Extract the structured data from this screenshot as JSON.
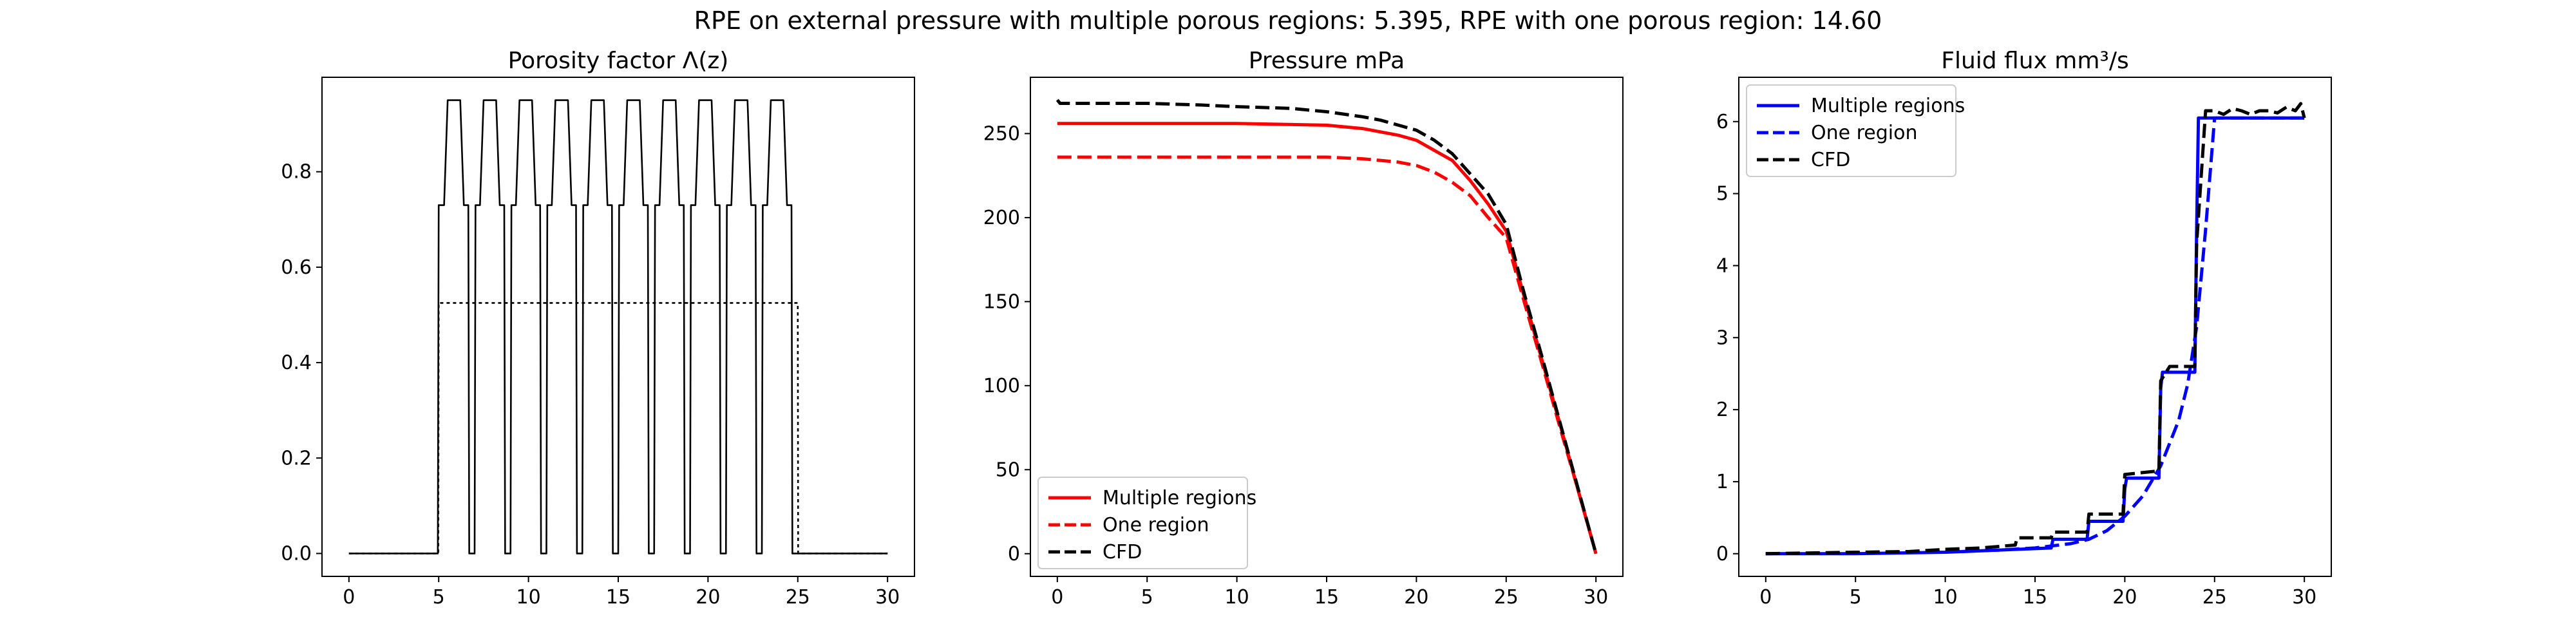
{
  "suptitle": "RPE on external pressure with multiple porous regions: 5.395, RPE with one porous region: 14.60",
  "chart_data": [
    {
      "type": "line",
      "title": "Porosity factor Λ(z)",
      "xlim": [
        -1.5,
        31.5
      ],
      "ylim": [
        -0.048,
        0.998
      ],
      "xticks": [
        0,
        5,
        10,
        15,
        20,
        25,
        30
      ],
      "yticks": [
        0.0,
        0.2,
        0.4,
        0.6,
        0.8
      ],
      "ytick_labels": [
        "0.0",
        "0.2",
        "0.4",
        "0.6",
        "0.8"
      ],
      "grid": false,
      "legend": null,
      "series": [
        {
          "style": "solid",
          "color": "#000000",
          "x": [
            0,
            4.95,
            5.0,
            5.05,
            5.3,
            5.5,
            6.2,
            6.4,
            6.65,
            6.7,
            7.0,
            7.05,
            7.3,
            7.5,
            8.2,
            8.4,
            8.65,
            8.7,
            9.0,
            9.05,
            9.3,
            9.5,
            10.2,
            10.4,
            10.65,
            10.7,
            11.0,
            11.05,
            11.3,
            11.5,
            12.2,
            12.4,
            12.65,
            12.7,
            13.0,
            13.05,
            13.3,
            13.5,
            14.2,
            14.4,
            14.65,
            14.7,
            15.0,
            15.05,
            15.3,
            15.5,
            16.2,
            16.4,
            16.65,
            16.7,
            17.0,
            17.05,
            17.3,
            17.5,
            18.2,
            18.4,
            18.65,
            18.7,
            19.0,
            19.05,
            19.3,
            19.5,
            20.2,
            20.4,
            20.65,
            20.7,
            21.0,
            21.05,
            21.3,
            21.5,
            22.2,
            22.4,
            22.65,
            22.7,
            23.0,
            23.05,
            23.3,
            23.5,
            24.2,
            24.4,
            24.65,
            24.7,
            25.0,
            25.05,
            30
          ],
          "y": [
            0,
            0,
            0.73,
            0.73,
            0.73,
            0.95,
            0.95,
            0.73,
            0.73,
            0,
            0,
            0.73,
            0.73,
            0.95,
            0.95,
            0.73,
            0.73,
            0,
            0,
            0.73,
            0.73,
            0.95,
            0.95,
            0.73,
            0.73,
            0,
            0,
            0.73,
            0.73,
            0.95,
            0.95,
            0.73,
            0.73,
            0,
            0,
            0.73,
            0.73,
            0.95,
            0.95,
            0.73,
            0.73,
            0,
            0,
            0.73,
            0.73,
            0.95,
            0.95,
            0.73,
            0.73,
            0,
            0,
            0.73,
            0.73,
            0.95,
            0.95,
            0.73,
            0.73,
            0,
            0,
            0.73,
            0.73,
            0.95,
            0.95,
            0.73,
            0.73,
            0,
            0,
            0.73,
            0.73,
            0.95,
            0.95,
            0.73,
            0.73,
            0,
            0,
            0.73,
            0.73,
            0.95,
            0.95,
            0.73,
            0.73,
            0,
            0,
            0,
            0
          ]
        },
        {
          "style": "dotted",
          "color": "#000000",
          "x": [
            0,
            4.98,
            5.0,
            25.0,
            25.02,
            30
          ],
          "y": [
            0,
            0,
            0.525,
            0.525,
            0,
            0
          ]
        }
      ]
    },
    {
      "type": "line",
      "title": "Pressure mPa",
      "xlim": [
        -1.5,
        31.5
      ],
      "ylim": [
        -13.5,
        283.5
      ],
      "xticks": [
        0,
        5,
        10,
        15,
        20,
        25,
        30
      ],
      "yticks": [
        0,
        50,
        100,
        150,
        200,
        250
      ],
      "ytick_labels": [
        "0",
        "50",
        "100",
        "150",
        "200",
        "250"
      ],
      "grid": false,
      "legend": "lower-left",
      "series": [
        {
          "name": "Multiple regions",
          "style": "solid",
          "color": "#ff0000",
          "x": [
            0,
            5,
            10,
            15,
            17,
            18,
            19,
            20,
            21,
            22,
            23,
            24,
            25,
            26,
            27,
            28,
            29,
            30
          ],
          "y": [
            256,
            256,
            256,
            255,
            253,
            251,
            249,
            246,
            240,
            234,
            222,
            208,
            192,
            153,
            115,
            77,
            38,
            0
          ]
        },
        {
          "name": "One region",
          "style": "dashed",
          "color": "#ff0000",
          "x": [
            0,
            5,
            10,
            15,
            17,
            18,
            19,
            20,
            21,
            22,
            23,
            24,
            25,
            26,
            27,
            28,
            29,
            30
          ],
          "y": [
            236,
            236,
            236,
            236,
            235,
            234,
            233,
            231,
            227,
            221,
            213,
            200,
            188,
            150,
            113,
            75,
            38,
            0
          ]
        },
        {
          "name": "CFD",
          "style": "dashed",
          "color": "#000000",
          "x": [
            0,
            0.15,
            2,
            5,
            8,
            10,
            13,
            15,
            17,
            18,
            19,
            20,
            21,
            22,
            23,
            24,
            25,
            26,
            27,
            28,
            29,
            30
          ],
          "y": [
            270,
            268,
            268,
            268,
            267,
            266,
            265,
            263,
            260,
            258,
            255,
            252,
            246,
            238,
            226,
            214,
            196,
            155,
            117,
            78,
            39,
            0
          ]
        }
      ]
    },
    {
      "type": "line",
      "title": "Fluid flux mm³/s",
      "xlim": [
        -1.5,
        31.5
      ],
      "ylim": [
        -0.315,
        6.615
      ],
      "xticks": [
        0,
        5,
        10,
        15,
        20,
        25,
        30
      ],
      "yticks": [
        0,
        1,
        2,
        3,
        4,
        5,
        6
      ],
      "ytick_labels": [
        "0",
        "1",
        "2",
        "3",
        "4",
        "5",
        "6"
      ],
      "grid": false,
      "legend": "top-left",
      "series": [
        {
          "name": "Multiple regions",
          "style": "solid",
          "color": "#0000ff",
          "x": [
            0,
            5,
            10,
            12,
            14,
            15.9,
            16,
            17.9,
            18,
            19.9,
            20,
            20.1,
            21.9,
            22,
            22.1,
            23.9,
            24.0,
            24.1,
            24.8,
            25.0,
            30
          ],
          "y": [
            0,
            0,
            0.02,
            0.04,
            0.06,
            0.08,
            0.2,
            0.2,
            0.45,
            0.45,
            0.9,
            1.05,
            1.05,
            2.3,
            2.52,
            2.52,
            4.5,
            6.05,
            6.05,
            6.05,
            6.05
          ]
        },
        {
          "name": "One region",
          "style": "dashed",
          "color": "#0000ff",
          "x": [
            0,
            5,
            10,
            13,
            15,
            17,
            18,
            19,
            20,
            21,
            22,
            23,
            23.5,
            24,
            24.5,
            25,
            30
          ],
          "y": [
            0,
            0.01,
            0.03,
            0.05,
            0.08,
            0.14,
            0.2,
            0.32,
            0.52,
            0.8,
            1.22,
            1.85,
            2.35,
            3.15,
            4.5,
            6.05,
            6.05
          ]
        },
        {
          "name": "CFD",
          "style": "dashed",
          "color": "#000000",
          "x": [
            0,
            5,
            8,
            10,
            12,
            13.9,
            14,
            15.9,
            16,
            17.9,
            18,
            19.9,
            20,
            21.9,
            22,
            22.5,
            23.9,
            24,
            24.5,
            25,
            25.5,
            26,
            26.5,
            27,
            27.5,
            28,
            28.5,
            29,
            29.5,
            29.8,
            30
          ],
          "y": [
            0,
            0.02,
            0.03,
            0.06,
            0.08,
            0.12,
            0.22,
            0.22,
            0.3,
            0.3,
            0.55,
            0.55,
            1.1,
            1.15,
            2.4,
            2.6,
            2.6,
            4.3,
            6.15,
            6.15,
            6.1,
            6.18,
            6.15,
            6.1,
            6.15,
            6.15,
            6.12,
            6.2,
            6.15,
            6.25,
            6.05
          ]
        }
      ]
    }
  ]
}
